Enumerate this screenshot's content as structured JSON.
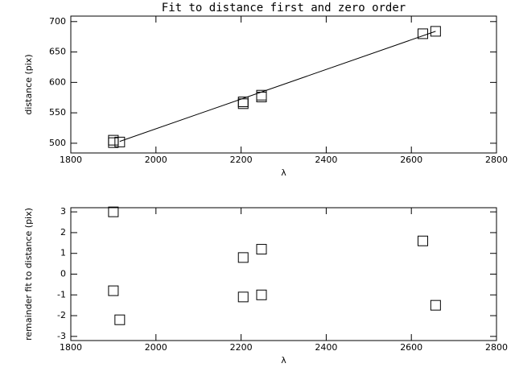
{
  "chart_data": [
    {
      "type": "scatter",
      "title": "Fit to distance first and zero order",
      "x_label": "λ",
      "y_label": "distance (pix)",
      "color": "#000000",
      "points": {
        "x": [
          1900,
          1900,
          1915,
          2205,
          2205,
          2248,
          2248,
          2627,
          2657
        ],
        "y": [
          505,
          501,
          502,
          568,
          565,
          579,
          576,
          680,
          684
        ]
      },
      "fit_line": {
        "x": [
          1915,
          2657
        ],
        "y": [
          503,
          684
        ]
      },
      "xlim": [
        1800,
        2800
      ],
      "xticks": [
        1800,
        2000,
        2200,
        2400,
        2600,
        2800
      ],
      "ylim": [
        484,
        709
      ],
      "yticks": [
        500,
        550,
        600,
        650,
        700
      ]
    },
    {
      "type": "scatter",
      "x_label": "λ",
      "y_label": "remainder fit to distance (pix)",
      "color": "#000000",
      "points": {
        "x": [
          1900,
          1900,
          1915,
          2205,
          2205,
          2248,
          2248,
          2627,
          2657
        ],
        "y": [
          3,
          -0.8,
          -2.2,
          0.8,
          -1.1,
          1.2,
          -1.0,
          1.6,
          -1.5
        ]
      },
      "xlim": [
        1800,
        2800
      ],
      "xticks": [
        1800,
        2000,
        2200,
        2400,
        2600,
        2800
      ],
      "ylim": [
        -3.2,
        3.2
      ],
      "yticks": [
        -3,
        -2,
        -1,
        0,
        1,
        2,
        3
      ]
    }
  ]
}
